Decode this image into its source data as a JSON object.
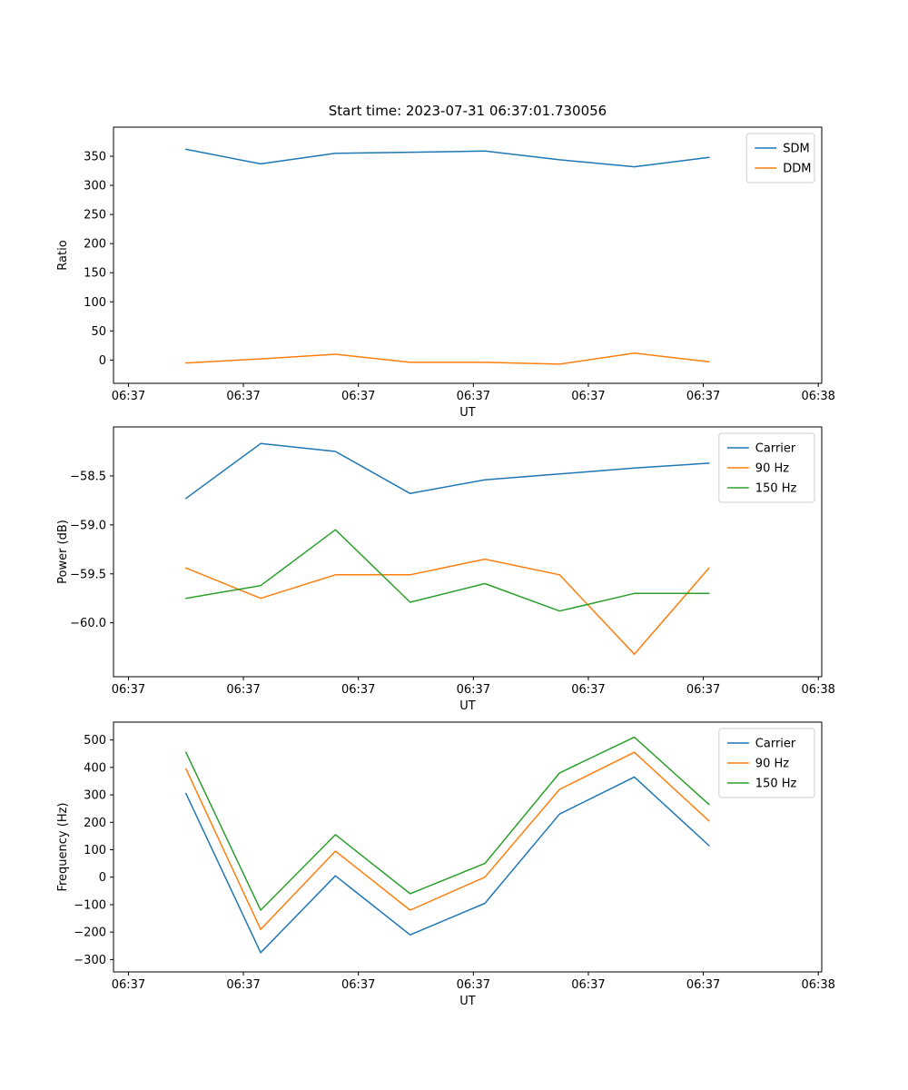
{
  "figure": {
    "title": "Start time: 2023-07-31 06:37:01.730056",
    "background": "#ffffff"
  },
  "colors": {
    "blue": "#1f77b4",
    "orange": "#ff7f0e",
    "green": "#2ca02c"
  },
  "chart_data": [
    {
      "type": "line",
      "title": "",
      "xlabel": "UT",
      "ylabel": "Ratio",
      "xlim": [
        -1.3,
        60.3
      ],
      "ylim": [
        -40,
        400
      ],
      "grid": false,
      "legend_position": "top-right",
      "x_ticks": [
        {
          "v": 0,
          "label": "06:37"
        },
        {
          "v": 10,
          "label": "06:37"
        },
        {
          "v": 20,
          "label": "06:37"
        },
        {
          "v": 30,
          "label": "06:37"
        },
        {
          "v": 40,
          "label": "06:37"
        },
        {
          "v": 50,
          "label": "06:37"
        },
        {
          "v": 60,
          "label": "06:38"
        }
      ],
      "y_ticks": [
        {
          "v": 0,
          "label": "0"
        },
        {
          "v": 50,
          "label": "50"
        },
        {
          "v": 100,
          "label": "100"
        },
        {
          "v": 150,
          "label": "150"
        },
        {
          "v": 200,
          "label": "200"
        },
        {
          "v": 250,
          "label": "250"
        },
        {
          "v": 300,
          "label": "300"
        },
        {
          "v": 350,
          "label": "350"
        }
      ],
      "x": [
        5,
        11.5,
        18,
        24.5,
        31,
        37.5,
        44,
        50.5
      ],
      "series": [
        {
          "name": "SDM",
          "color": "#1f77b4",
          "values": [
            362,
            337,
            355,
            357,
            359,
            344,
            332,
            348
          ]
        },
        {
          "name": "DDM",
          "color": "#ff7f0e",
          "values": [
            -5,
            2,
            10,
            -4,
            -4,
            -7,
            12,
            -3
          ]
        }
      ]
    },
    {
      "type": "line",
      "title": "",
      "xlabel": "UT",
      "ylabel": "Power (dB)",
      "xlim": [
        -1.3,
        60.3
      ],
      "ylim": [
        -60.55,
        -58.0
      ],
      "grid": false,
      "legend_position": "top-right",
      "x_ticks": [
        {
          "v": 0,
          "label": "06:37"
        },
        {
          "v": 10,
          "label": "06:37"
        },
        {
          "v": 20,
          "label": "06:37"
        },
        {
          "v": 30,
          "label": "06:37"
        },
        {
          "v": 40,
          "label": "06:37"
        },
        {
          "v": 50,
          "label": "06:37"
        },
        {
          "v": 60,
          "label": "06:38"
        }
      ],
      "y_ticks": [
        {
          "v": -58.5,
          "label": "−58.5"
        },
        {
          "v": -59.0,
          "label": "−59.0"
        },
        {
          "v": -59.5,
          "label": "−59.5"
        },
        {
          "v": -60.0,
          "label": "−60.0"
        }
      ],
      "x": [
        5,
        11.5,
        18,
        24.5,
        31,
        37.5,
        44,
        50.5
      ],
      "series": [
        {
          "name": "Carrier",
          "color": "#1f77b4",
          "values": [
            -58.73,
            -58.17,
            -58.25,
            -58.68,
            -58.54,
            -58.48,
            -58.42,
            -58.37
          ]
        },
        {
          "name": "90 Hz",
          "color": "#ff7f0e",
          "values": [
            -59.44,
            -59.75,
            -59.51,
            -59.51,
            -59.35,
            -59.51,
            -60.32,
            -59.44
          ]
        },
        {
          "name": "150 Hz",
          "color": "#2ca02c",
          "values": [
            -59.75,
            -59.62,
            -59.05,
            -59.79,
            -59.6,
            -59.88,
            -59.7,
            -59.7
          ]
        }
      ]
    },
    {
      "type": "line",
      "title": "",
      "xlabel": "UT",
      "ylabel": "Frequency (Hz)",
      "xlim": [
        -1.3,
        60.3
      ],
      "ylim": [
        -345,
        565
      ],
      "grid": false,
      "legend_position": "top-right",
      "x_ticks": [
        {
          "v": 0,
          "label": "06:37"
        },
        {
          "v": 10,
          "label": "06:37"
        },
        {
          "v": 20,
          "label": "06:37"
        },
        {
          "v": 30,
          "label": "06:37"
        },
        {
          "v": 40,
          "label": "06:37"
        },
        {
          "v": 50,
          "label": "06:37"
        },
        {
          "v": 60,
          "label": "06:38"
        }
      ],
      "y_ticks": [
        {
          "v": 500,
          "label": "500"
        },
        {
          "v": 400,
          "label": "400"
        },
        {
          "v": 300,
          "label": "300"
        },
        {
          "v": 200,
          "label": "200"
        },
        {
          "v": 100,
          "label": "100"
        },
        {
          "v": 0,
          "label": "0"
        },
        {
          "v": -100,
          "label": "−100"
        },
        {
          "v": -200,
          "label": "−200"
        },
        {
          "v": -300,
          "label": "−300"
        }
      ],
      "x": [
        5,
        11.5,
        18,
        24.5,
        31,
        37.5,
        44,
        50.5
      ],
      "series": [
        {
          "name": "Carrier",
          "color": "#1f77b4",
          "values": [
            305,
            -275,
            5,
            -210,
            -95,
            230,
            365,
            115
          ]
        },
        {
          "name": "90 Hz",
          "color": "#ff7f0e",
          "values": [
            395,
            -190,
            95,
            -120,
            0,
            320,
            455,
            205
          ]
        },
        {
          "name": "150 Hz",
          "color": "#2ca02c",
          "values": [
            455,
            -120,
            155,
            -60,
            50,
            380,
            510,
            265
          ]
        }
      ]
    }
  ]
}
